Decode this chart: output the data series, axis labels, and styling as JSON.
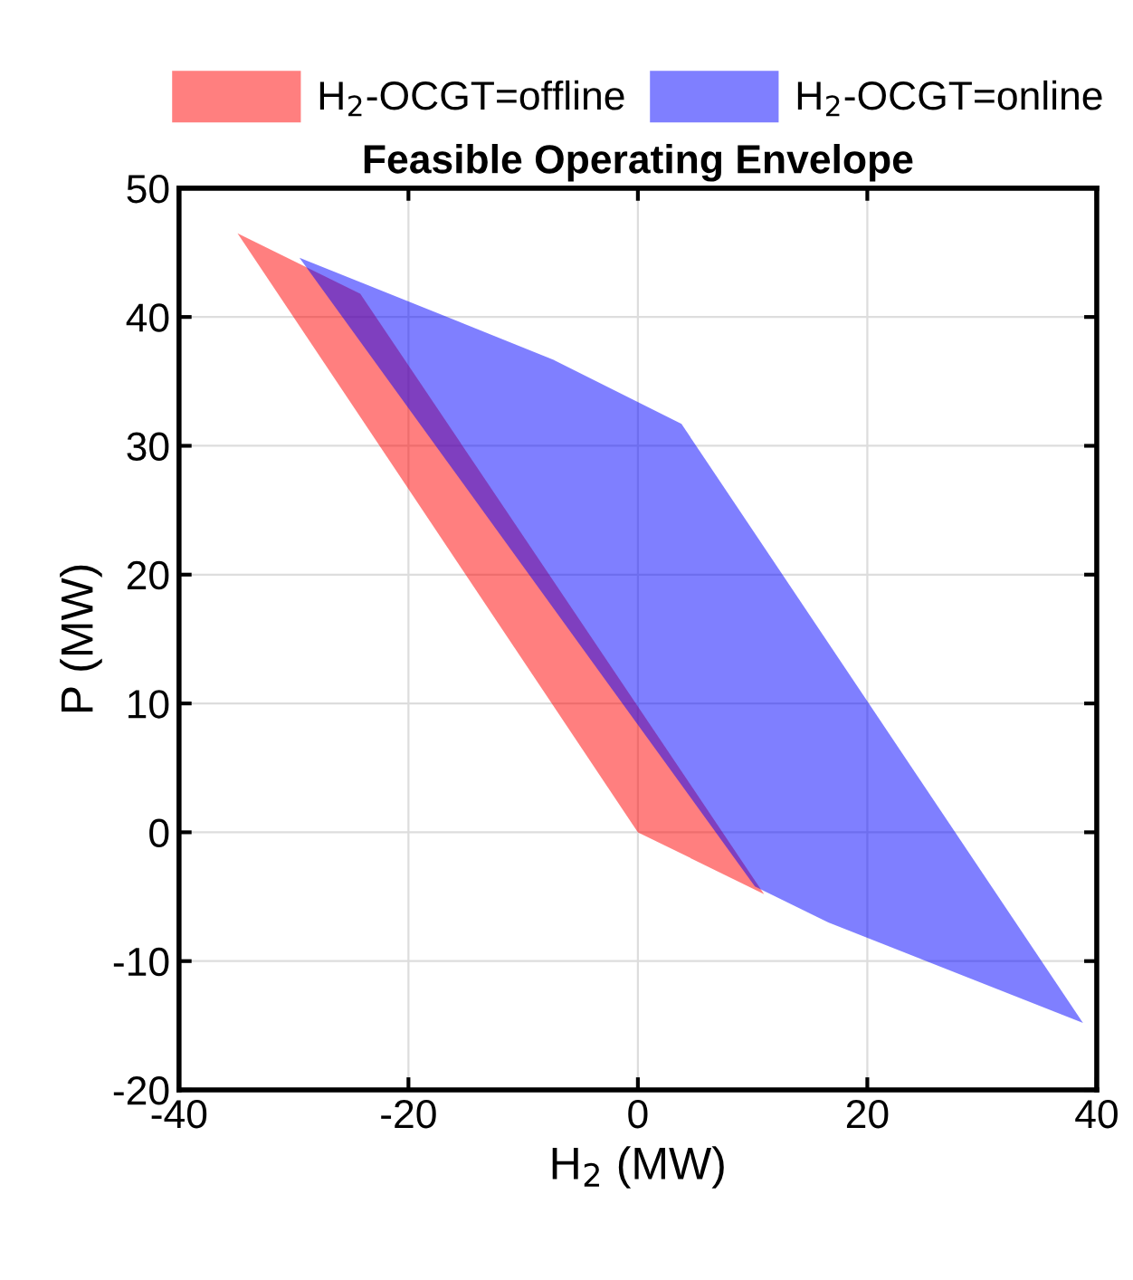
{
  "chart_data": {
    "type": "area",
    "title": "Feasible Operating Envelope",
    "xlabel": "H$_{2}$ (MW)",
    "ylabel": "P (MW)",
    "series": [
      {
        "name": "H$_{2}$-OCGT=offline",
        "color": "#ff0000",
        "x": [
          -34.9,
          -24.2,
          11.0,
          0.0
        ],
        "values": [
          46.5,
          41.8,
          -4.8,
          0.0
        ]
      },
      {
        "name": "H$_{2}$-OCGT=online",
        "color": "#0000ff",
        "x": [
          -29.5,
          -7.4,
          3.8,
          38.8,
          16.6,
          10.2
        ],
        "values": [
          44.6,
          36.7,
          31.7,
          -14.8,
          -7.0,
          -4.2
        ]
      }
    ],
    "xlim": [
      -40,
      40
    ],
    "xticks": [
      -40,
      -20,
      0,
      20,
      40
    ],
    "ylim": [
      -20,
      50
    ],
    "yticks": [
      -20,
      -10,
      0,
      10,
      20,
      30,
      40,
      50
    ],
    "grid": true,
    "legend": "top"
  }
}
